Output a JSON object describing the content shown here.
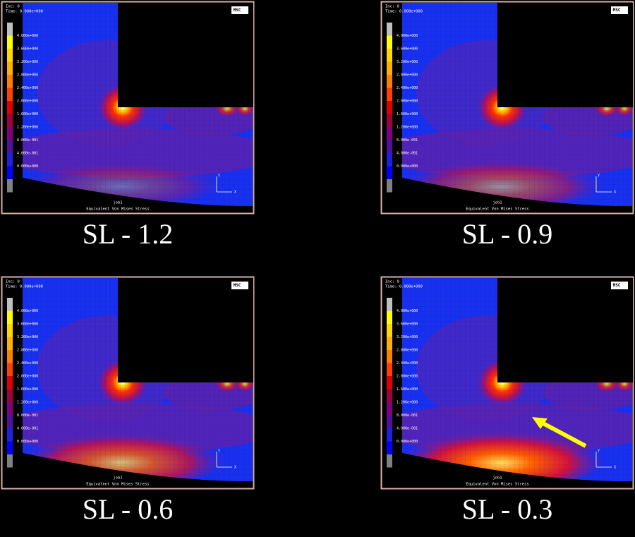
{
  "panels": [
    {
      "inc": "Inc: 0",
      "time": "Time: 0.000e+000",
      "logo": "MSC",
      "job": "job1",
      "result": "Equivalent Von Mises Stress",
      "caption": "SL - 1.2"
    },
    {
      "inc": "Inc: 0",
      "time": "Time: 0.000e+000",
      "logo": "MSC",
      "job": "job1",
      "result": "Equivalent Von Mises Stress",
      "caption": "SL - 0.9"
    },
    {
      "inc": "Inc: 0",
      "time": "Time: 0.000e+000",
      "logo": "MSC",
      "job": "job1",
      "result": "Equivalent Von Mises Stress",
      "caption": "SL - 0.6"
    },
    {
      "inc": "Inc: 0",
      "time": "Time: 0.000e+000",
      "logo": "MSC",
      "job": "job1",
      "result": "Equivalent Von Mises Stress",
      "caption": "SL - 0.3"
    }
  ],
  "legend_labels": [
    "4.000e+000",
    "3.600e+000",
    "3.200e+000",
    "2.800e+000",
    "2.400e+000",
    "2.000e+000",
    "1.600e+000",
    "1.200e+000",
    "8.000e-001",
    "4.000e-001",
    "0.000e+000"
  ],
  "axes": [
    "Y",
    "X"
  ]
}
